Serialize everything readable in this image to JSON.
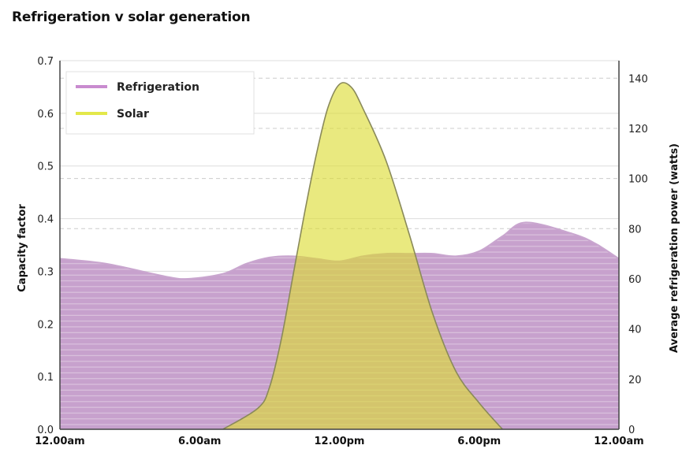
{
  "title": "Refrigeration v solar generation",
  "chart_data": {
    "type": "area",
    "title": "Refrigeration v solar generation",
    "x_tick_labels": [
      "12.00am",
      "6.00am",
      "12.00pm",
      "6.00pm",
      "12.00am"
    ],
    "x_hours": [
      0,
      6,
      12,
      18,
      24
    ],
    "left_axis": {
      "label": "Capacity factor",
      "ylim": [
        0,
        0.7
      ],
      "ticks": [
        "0.0",
        "0.1",
        "0.2",
        "0.3",
        "0.4",
        "0.5",
        "0.6",
        "0.7"
      ]
    },
    "right_axis": {
      "label": "Average refrigeration power (watts)",
      "ylim": [
        0,
        147
      ],
      "ticks": [
        "0",
        "20",
        "40",
        "60",
        "80",
        "100",
        "120",
        "140"
      ]
    },
    "legend": {
      "position": "top-left",
      "items": [
        "Refrigeration",
        "Solar"
      ]
    },
    "series": [
      {
        "name": "Refrigeration",
        "axis": "right",
        "color": "#c49bcb",
        "x": [
          0,
          2,
          4.5,
          5.5,
          7,
          8,
          9,
          10,
          11,
          12,
          13,
          14,
          15,
          16,
          17,
          18,
          19,
          20,
          22,
          23,
          24
        ],
        "values": [
          68,
          66,
          61,
          60,
          62,
          66,
          68.5,
          69,
          68,
          67,
          69,
          70,
          70,
          70,
          69,
          71,
          77,
          82.5,
          78,
          74,
          68
        ]
      },
      {
        "name": "Solar",
        "axis": "left",
        "color": "#e1e048",
        "x": [
          7,
          8.5,
          9,
          9.5,
          10,
          10.5,
          11,
          11.5,
          12,
          12.5,
          13,
          14,
          15,
          16,
          17,
          18,
          19
        ],
        "values": [
          0,
          0.04,
          0.08,
          0.17,
          0.29,
          0.41,
          0.52,
          0.61,
          0.655,
          0.65,
          0.61,
          0.51,
          0.37,
          0.22,
          0.11,
          0.05,
          0
        ]
      }
    ]
  }
}
